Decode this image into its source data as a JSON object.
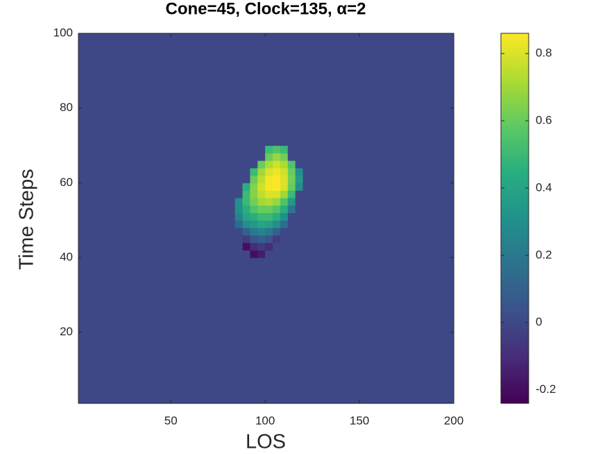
{
  "chart_data": {
    "type": "heatmap",
    "title": "Cone=45, Clock=135, α=2",
    "x_label": "LOS",
    "y_label": "Time Steps",
    "x_bins": [
      1,
      84,
      88,
      92,
      96,
      100,
      104,
      108,
      112,
      116,
      120,
      200
    ],
    "y_bins": [
      1,
      40,
      42,
      44,
      46,
      48,
      50,
      52,
      54,
      56,
      58,
      60,
      62,
      64,
      66,
      68,
      70,
      100
    ],
    "z": [
      [
        0,
        0,
        0,
        0,
        0,
        0,
        0,
        0,
        0,
        0,
        0
      ],
      [
        0,
        0,
        0,
        -0.2,
        -0.15,
        0,
        0,
        0,
        0,
        0,
        0
      ],
      [
        0,
        0,
        -0.2,
        -0.1,
        -0.05,
        -0.1,
        0,
        0,
        0,
        0,
        0
      ],
      [
        0,
        0,
        -0.05,
        0.05,
        0.1,
        0.05,
        -0.05,
        0,
        0,
        0,
        0
      ],
      [
        0,
        0,
        0.1,
        0.2,
        0.25,
        0.2,
        0.1,
        0,
        0,
        0,
        0
      ],
      [
        0,
        0.15,
        0.3,
        0.35,
        0.4,
        0.38,
        0.3,
        0.15,
        0,
        0,
        0
      ],
      [
        0,
        0.25,
        0.4,
        0.45,
        0.5,
        0.5,
        0.45,
        0.3,
        0,
        0,
        0
      ],
      [
        0,
        0.3,
        0.45,
        0.55,
        0.6,
        0.6,
        0.55,
        0.45,
        0.2,
        0,
        0
      ],
      [
        0,
        0.3,
        0.5,
        0.62,
        0.7,
        0.72,
        0.68,
        0.55,
        0.35,
        0,
        0
      ],
      [
        0,
        0,
        0.5,
        0.65,
        0.75,
        0.8,
        0.8,
        0.7,
        0.5,
        0,
        0
      ],
      [
        0,
        0,
        0.45,
        0.65,
        0.78,
        0.85,
        0.86,
        0.8,
        0.6,
        0.3,
        0
      ],
      [
        0,
        0,
        0,
        0.6,
        0.75,
        0.84,
        0.86,
        0.8,
        0.62,
        0.35,
        0
      ],
      [
        0,
        0,
        0,
        0.5,
        0.7,
        0.8,
        0.84,
        0.78,
        0.6,
        0.3,
        0
      ],
      [
        0,
        0,
        0,
        0,
        0.6,
        0.72,
        0.78,
        0.72,
        0.55,
        0,
        0
      ],
      [
        0,
        0,
        0,
        0,
        0,
        0.6,
        0.68,
        0.62,
        0,
        0,
        0
      ],
      [
        0,
        0,
        0,
        0,
        0,
        0.5,
        0.55,
        0.5,
        0,
        0,
        0
      ],
      [
        0,
        0,
        0,
        0,
        0,
        0,
        0,
        0,
        0,
        0,
        0
      ]
    ],
    "xlim": [
      1,
      200
    ],
    "ylim": [
      1,
      100
    ],
    "xticks": [
      50,
      100,
      150,
      200
    ],
    "yticks": [
      20,
      40,
      60,
      80,
      100
    ],
    "colormap": "viridis",
    "clim": [
      -0.24,
      0.86
    ],
    "cticks": [
      -0.2,
      0,
      0.2,
      0.4,
      0.6,
      0.8
    ]
  }
}
